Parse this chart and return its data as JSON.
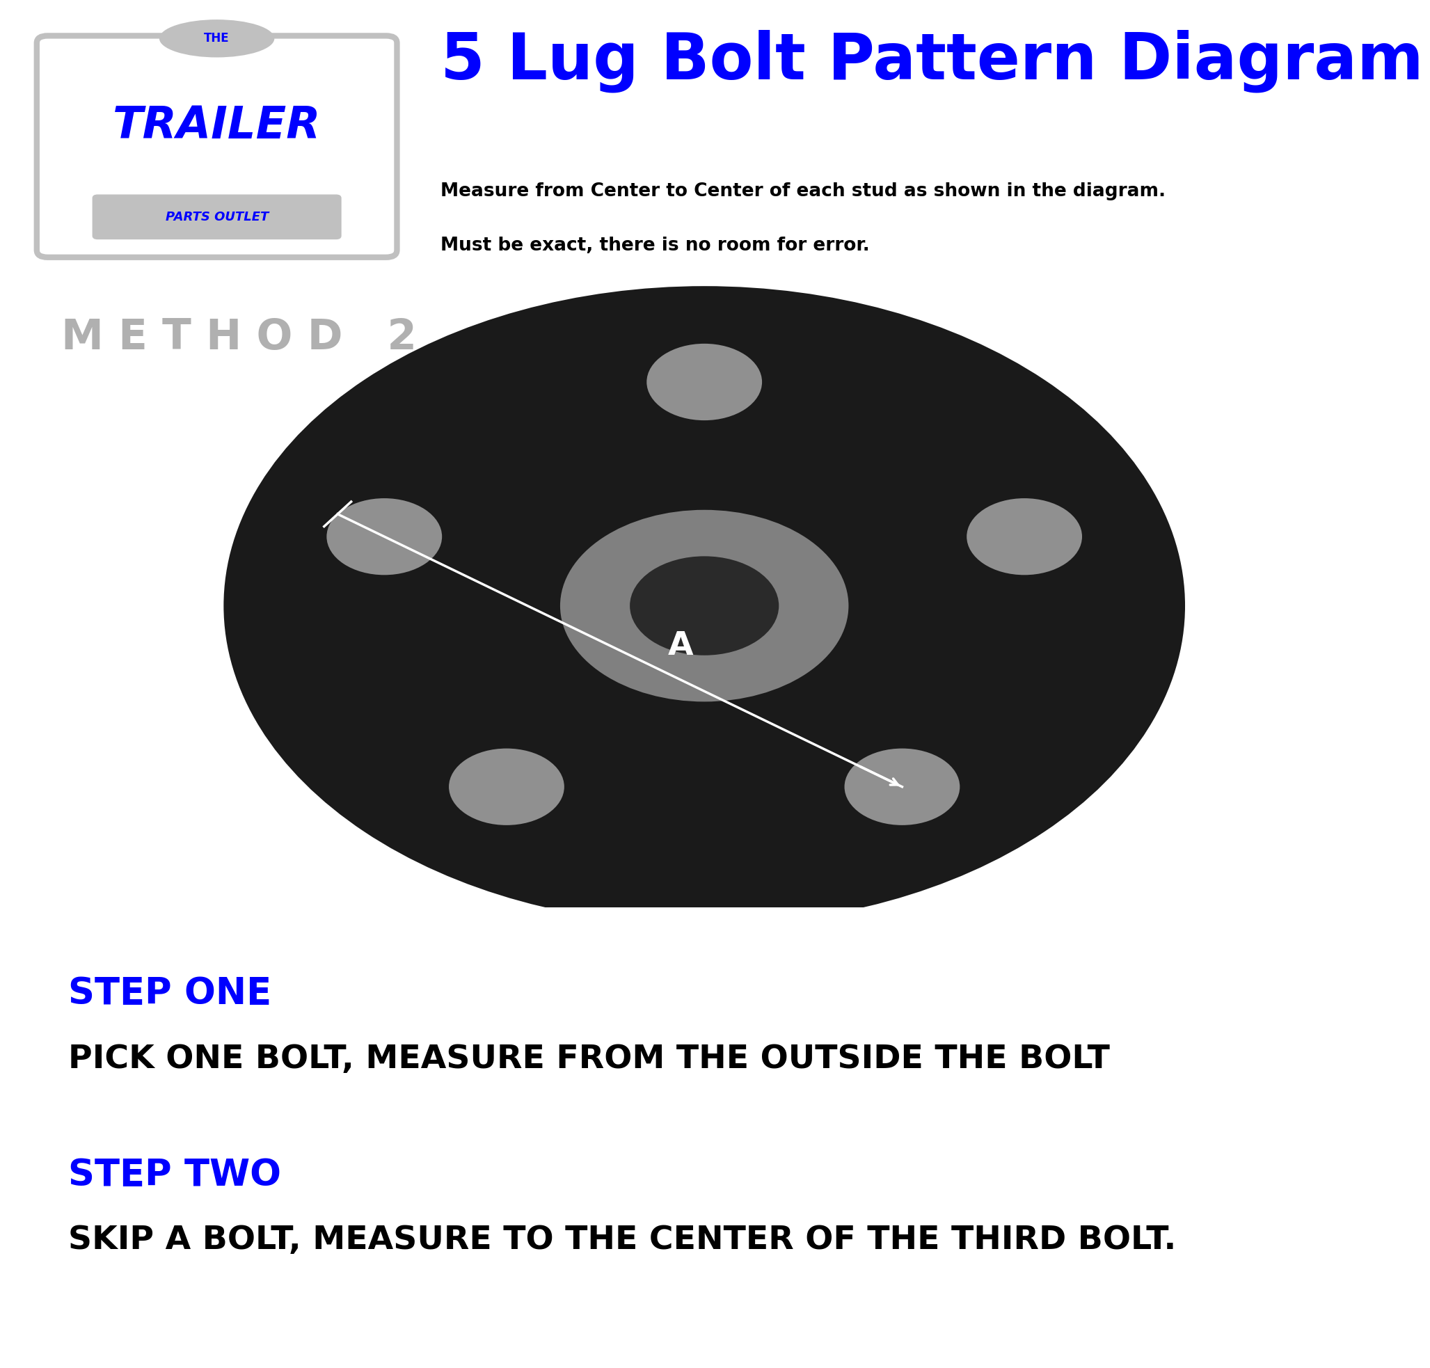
{
  "title": "5 Lug Bolt Pattern Diagram",
  "subtitle_line1": "Measure from Center to Center of each stud as shown in the diagram.",
  "subtitle_line2": "Must be exact, there is no room for error.",
  "method_text": "M E T H O D   2",
  "logo_text_the": "THE",
  "logo_text_main": "TRAILER",
  "logo_text_sub": "PARTS OUTLET",
  "step1_label": "STEP ONE",
  "step1_text": "PICK ONE BOLT, MEASURE FROM THE OUTSIDE THE BOLT",
  "step2_label": "STEP TWO",
  "step2_text": "SKIP A BOLT, MEASURE TO THE CENTER OF THE THIRD BOLT.",
  "title_color": "#0000ff",
  "subtitle_color": "#000000",
  "method_color": "#b0b0b0",
  "step_label_color": "#0000ff",
  "step_text_color": "#000000",
  "logo_border_color": "#c0c0c0",
  "logo_text_color": "#0000ff",
  "disk_color": "#1a1a1a",
  "hub_outer_color": "#808080",
  "hub_inner_color": "#2a2a2a",
  "bolt_color": "#909090",
  "measurement_line_color": "#ffffff",
  "label_A_color": "#ffffff",
  "bottom_bg_color": "#d8d8d8",
  "white_bg": "#ffffff",
  "num_bolts": 5
}
